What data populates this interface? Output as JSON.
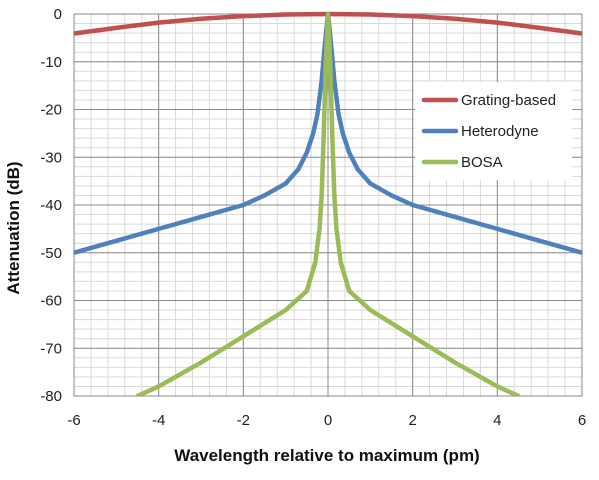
{
  "chart_data": {
    "type": "line",
    "title": "",
    "xlabel": "Wavelength relative to maximum (pm)",
    "ylabel": "Attenuation (dB)",
    "xlim": [
      -6,
      6
    ],
    "ylim": [
      -80,
      0
    ],
    "xticks": [
      -6,
      -4,
      -2,
      0,
      2,
      4,
      6
    ],
    "yticks": [
      0,
      -10,
      -20,
      -30,
      -40,
      -50,
      -60,
      -70,
      -80
    ],
    "grid": true,
    "legend_position": "right",
    "series": [
      {
        "name": "Grating-based",
        "color": "#c0504d",
        "x": [
          -6,
          -5,
          -4,
          -3,
          -2,
          -1,
          0,
          1,
          2,
          3,
          4,
          5,
          6
        ],
        "y": [
          -4.1,
          -2.9,
          -1.8,
          -1.0,
          -0.45,
          -0.1,
          0,
          -0.1,
          -0.45,
          -1.0,
          -1.8,
          -2.9,
          -4.1
        ]
      },
      {
        "name": "Heterodyne",
        "color": "#4f81bd",
        "x": [
          -6,
          -5,
          -4,
          -3,
          -2,
          -1.5,
          -1,
          -0.7,
          -0.5,
          -0.35,
          -0.25,
          -0.15,
          -0.08,
          0,
          0.08,
          0.15,
          0.25,
          0.35,
          0.5,
          0.7,
          1,
          1.5,
          2,
          3,
          4,
          5,
          6
        ],
        "y": [
          -50,
          -47.5,
          -45,
          -42.5,
          -40,
          -38,
          -35.5,
          -32.5,
          -29,
          -25,
          -21,
          -14,
          -7,
          0,
          -7,
          -14,
          -21,
          -25,
          -29,
          -32.5,
          -35.5,
          -38,
          -40,
          -42.5,
          -45,
          -47.5,
          -50
        ]
      },
      {
        "name": "BOSA",
        "color": "#9bbb59",
        "x": [
          -4.5,
          -4,
          -3,
          -2,
          -1,
          -0.5,
          -0.3,
          -0.2,
          -0.15,
          -0.1,
          -0.05,
          0,
          0.05,
          0.1,
          0.15,
          0.2,
          0.3,
          0.5,
          1,
          2,
          3,
          4,
          4.5
        ],
        "y": [
          -80,
          -78,
          -73,
          -67.5,
          -62,
          -58,
          -52,
          -45,
          -38,
          -25,
          -10,
          0,
          -10,
          -25,
          -38,
          -45,
          -52,
          -58,
          -62,
          -67.5,
          -73,
          -78,
          -80
        ]
      }
    ]
  }
}
